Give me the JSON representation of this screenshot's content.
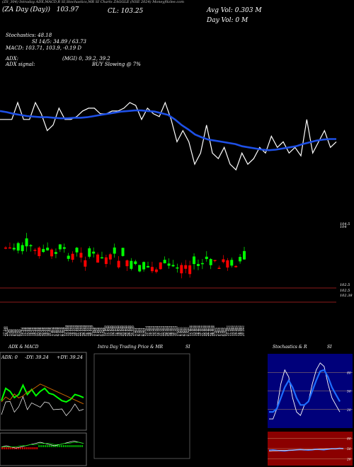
{
  "header": {
    "top_line": "(ZS_304) Intraday ADX,MACD,R SI,Stochastics,MR SI Charts ZAGGLE (NSE 2024) Moneyfitzlee.com",
    "day_line": "(ZA  Day  (Day))",
    "day_value": "103.97",
    "cl_label": "CL:",
    "cl_value": "103.25",
    "avg_vol_label": "Avg Vol:",
    "avg_vol_value": "0.303  M",
    "day_vol_label": "Day Vol:",
    "day_vol_value": "0   M",
    "stochastics": "Stochastics: 48.18",
    "si": "SI 14/5: 34.89 / 63.73",
    "macd": "MACD: 103.71, 103.9, -0.19 D",
    "adx": "ADX:",
    "adx_values": "(MGI) 0, 39.2, 39.2",
    "adx_signal_label": "ADX  signal:",
    "adx_signal_value": "BUY  Slowing @ 7%"
  },
  "price_axis": {
    "top": [
      "104.5",
      "104"
    ],
    "bottom": [
      "102.5",
      "102.5",
      "102.38"
    ]
  },
  "x_labels": [
    "27 Jun",
    "28 Jun",
    "1 Jul",
    "2 Jul",
    "3 Jul",
    "4 Jul",
    "5 Jul",
    "8 Jul",
    "9 Jul",
    "10 Jul",
    "11 Jul",
    "12 Jul",
    "15 Jul",
    "16 Jul",
    "18 Jul",
    "19 Jul",
    "22 Jul",
    "23 Jul",
    "24 Jul",
    "25 Jul",
    "26 Jul",
    "29 Jul",
    "30 Jul",
    "31 Jul",
    "1 Aug",
    "2 Aug",
    "5 Aug",
    "6 Aug",
    "7 Aug",
    "8 Aug",
    "9 Aug",
    "12 Aug",
    "13 Aug",
    "14 Aug",
    "16 Aug",
    "19 Aug",
    "20 Aug",
    "21 Aug",
    "22 Aug",
    "23 Aug",
    "26 Aug",
    "27 Aug",
    "28 Aug",
    "29 Aug",
    "30 Aug",
    "2 Sep",
    "3 Sep",
    "4 Sep",
    "5 Sep",
    "6 Sep",
    "9 Sep",
    "10 Sep",
    "11 Sep",
    "12 Sep",
    "13 Sep",
    "16 Sep",
    "17 Sep",
    "18 Sep",
    "19 Sep",
    "20 Sep",
    "23 Sep",
    "24 Sep",
    "25 Sep",
    "26 Sep",
    "27 Sep",
    "30 Sep",
    "1 Oct",
    "3 Oct",
    "4 Oct",
    "7 Oct",
    "8 Oct",
    "9 Oct",
    "10 Oct",
    "11 Oct",
    "14 Oct",
    "15 Oct",
    "16 Oct",
    "17 Oct",
    "18 Oct",
    "21 Oct",
    "22 Oct",
    "23 Oct",
    "24 Oct",
    "25 Oct",
    "28 Oct",
    "29 Oct",
    "30 Oct",
    "31 Oct",
    "1 Nov",
    "4 Nov",
    "5 Nov",
    "6 Nov",
    "7 Nov",
    "8 Nov",
    "11 Nov",
    "12 Nov",
    "13 Nov",
    "14 Nov",
    "18 Nov",
    "19 Nov",
    "21 Nov",
    "22 Nov",
    "25 Nov",
    "26 Nov",
    "27 Nov",
    "28 Nov",
    "29 Nov",
    "2 Dec",
    "3 Dec",
    "4 Dec",
    "5 Dec",
    "6 Dec",
    "9 Dec",
    "10 Dec",
    "11 Dec",
    "12 Dec",
    "13 Dec",
    "16 Dec",
    "17 Dec",
    "18 Dec",
    "19 Dec",
    "20 Dec"
  ],
  "panels": {
    "adx_title": "ADX  & MACD",
    "adx_stats_a": "ADX: 0",
    "adx_stats_b": "-DY: 39.24",
    "adx_stats_c": "+DY: 39.24",
    "intraday_title": "Intra  Day Trading Price  & MR",
    "intraday_si": "SI",
    "stoch_title": "Stochastics & R",
    "stoch_si": "SI",
    "stoch_ticks": [
      "80",
      "50",
      "20"
    ],
    "rsi_ticks": [
      "80",
      "50",
      "20"
    ]
  },
  "colors": {
    "bg": "#000000",
    "price": "#ffffff",
    "ma": "#1e50e6",
    "up": "#00ff00",
    "down": "#ff0000",
    "stoch_bg": "#00007a",
    "rsi_bg": "#8b0000"
  },
  "chart_data": [
    {
      "type": "line",
      "series": [
        {
          "values": [
            103.6,
            103.6,
            103.6,
            103.9,
            103.6,
            103.6,
            103.9,
            103.7,
            103.4,
            103.5,
            103.8,
            103.6,
            103.6,
            103.65,
            103.75,
            103.8,
            103.8,
            103.7,
            103.7,
            103.75,
            103.75,
            103.8,
            103.9,
            103.85,
            103.6,
            103.8,
            103.7,
            103.65,
            103.9,
            103.6,
            103.2,
            103.4,
            103.2,
            102.8,
            103.0,
            103.5,
            103.0,
            102.9,
            103.1,
            102.8,
            102.7,
            103.0,
            102.8,
            102.9,
            103.1,
            103.0,
            103.3,
            103.1,
            103.2,
            103.0,
            103.1,
            102.95,
            103.6,
            103.0,
            103.2,
            103.4,
            103.1,
            103.2
          ]
        },
        {
          "values": [
            103.75,
            103.73,
            103.7,
            103.68,
            103.66,
            103.65,
            103.64,
            103.64,
            103.63,
            103.62,
            103.62,
            103.63,
            103.63,
            103.64,
            103.66,
            103.68,
            103.7,
            103.72,
            103.74,
            103.75,
            103.76,
            103.76,
            103.75,
            103.74,
            103.71,
            103.68,
            103.6,
            103.5,
            103.42,
            103.33,
            103.28,
            103.24,
            103.22,
            103.2,
            103.18,
            103.16,
            103.12,
            103.1,
            103.08,
            103.06,
            103.05,
            103.06,
            103.08,
            103.1,
            103.12,
            103.16,
            103.19,
            103.22,
            103.24,
            103.25,
            103.25
          ]
        }
      ]
    },
    {
      "type": "bar",
      "title": "",
      "ylim": [
        102.38,
        104.5
      ]
    },
    {
      "type": "line",
      "series": [
        {
          "values": [
            20,
            40,
            35,
            25,
            30,
            45,
            30,
            38,
            28,
            35,
            40,
            32,
            30,
            25,
            20,
            18,
            22,
            30,
            28,
            25
          ]
        },
        {
          "values": [
            10,
            15,
            12,
            18,
            14,
            16,
            20,
            22,
            25,
            28,
            26,
            24,
            22,
            20,
            18,
            16,
            14,
            12,
            10,
            8
          ]
        }
      ]
    },
    {
      "type": "line",
      "series": [
        {
          "values": [
            10,
            10,
            25,
            60,
            80,
            70,
            40,
            20,
            15,
            30,
            35,
            60,
            80,
            90,
            85,
            60,
            40,
            30,
            20
          ]
        },
        {
          "values": [
            20,
            20,
            25,
            40,
            55,
            65,
            55,
            40,
            30,
            30,
            35,
            50,
            65,
            78,
            80,
            70,
            55,
            45,
            35
          ]
        }
      ],
      "ylim": [
        0,
        100
      ]
    },
    {
      "type": "line",
      "series": [
        {
          "values": [
            45,
            46,
            44,
            43,
            42,
            44,
            45,
            46,
            47,
            46,
            45,
            46,
            48,
            47,
            46,
            48,
            50,
            49,
            51,
            50
          ]
        },
        {
          "values": [
            42,
            43,
            43,
            44,
            44,
            45,
            45,
            46,
            46,
            46,
            47,
            47,
            47,
            48,
            48,
            49,
            49,
            50,
            50,
            50
          ]
        }
      ],
      "ylim": [
        0,
        100
      ]
    }
  ]
}
